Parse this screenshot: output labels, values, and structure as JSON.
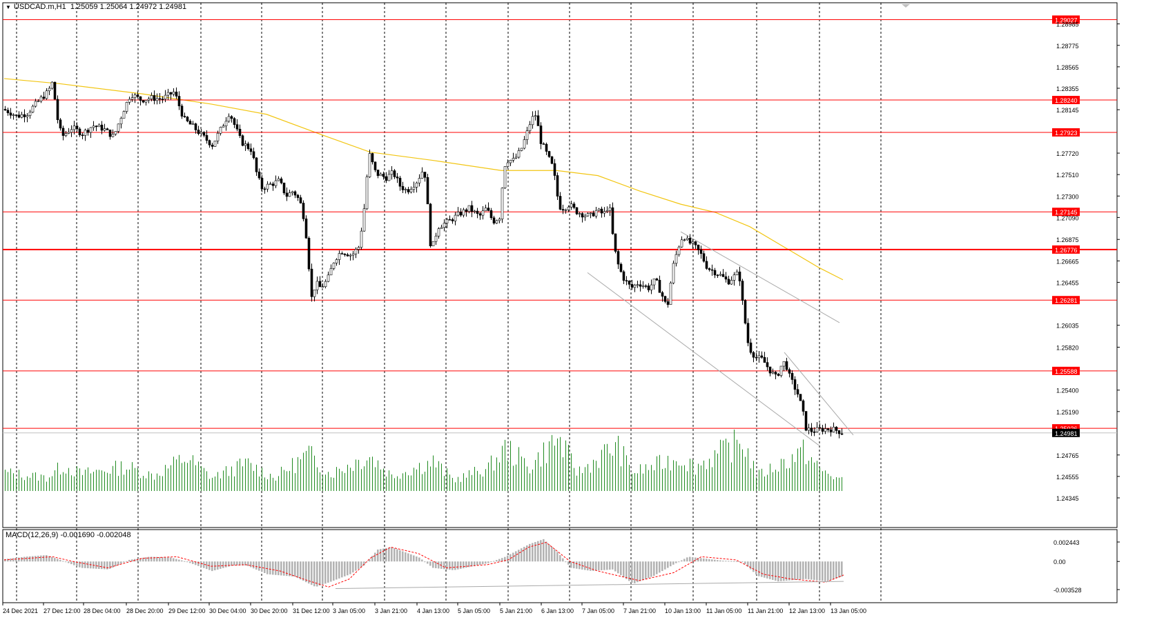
{
  "window": {
    "symbol": "USDCAD.m",
    "timeframe": "H1",
    "ohlc": "1.25059 1.25064 1.24972 1.24981"
  },
  "colors": {
    "background": "#ffffff",
    "candle": "#000000",
    "sma": "#f2c511",
    "level_line": "#ff0000",
    "level_tag_bg": "#ff0000",
    "level_tag_text": "#ffffff",
    "channel": "#a9a9a9",
    "volume": "#1f8a1f",
    "macd_hist": "#b3b3b3",
    "macd_signal": "#ff0000",
    "grid_vertical": "#000000"
  },
  "price_axis": {
    "ticks": [
      "1.28985",
      "1.28775",
      "1.28565",
      "1.28355",
      "1.28145",
      "1.27720",
      "1.27510",
      "1.27300",
      "1.27090",
      "1.26875",
      "1.26665",
      "1.26455",
      "1.26035",
      "1.25820",
      "1.25400",
      "1.25190",
      "1.24765",
      "1.24555",
      "1.24345"
    ],
    "current_price": "1.24981"
  },
  "levels": [
    {
      "label": "1.29027",
      "value": 1.29027
    },
    {
      "label": "1.28240",
      "value": 1.2824
    },
    {
      "label": "1.27923",
      "value": 1.27923
    },
    {
      "label": "1.27145",
      "value": 1.27145
    },
    {
      "label": "1.26776",
      "value": 1.26776
    },
    {
      "label": "1.26281",
      "value": 1.26281
    },
    {
      "label": "1.25588",
      "value": 1.25588
    },
    {
      "label": "1.25026",
      "value": 1.25026
    }
  ],
  "time_axis": [
    "24 Dec 2021",
    "27 Dec 12:00",
    "28 Dec 04:00",
    "28 Dec 20:00",
    "29 Dec 12:00",
    "30 Dec 04:00",
    "30 Dec 20:00",
    "31 Dec 12:00",
    "3 Jan 05:00",
    "3 Jan 21:00",
    "4 Jan 13:00",
    "5 Jan 05:00",
    "5 Jan 21:00",
    "6 Jan 13:00",
    "7 Jan 05:00",
    "7 Jan 21:00",
    "10 Jan 13:00",
    "11 Jan 05:00",
    "11 Jan 21:00",
    "12 Jan 13:00",
    "13 Jan 05:00"
  ],
  "macd": {
    "title": "MACD(12,26,9) -0.001690 -0.002048",
    "ticks": [
      "0.002443",
      "0.00",
      "-0.003528"
    ]
  },
  "chart_data": {
    "type": "candlestick",
    "price_path": [
      [
        0,
        1.2815
      ],
      [
        10,
        1.2812
      ],
      [
        20,
        1.2808
      ],
      [
        35,
        1.2811
      ],
      [
        50,
        1.2822
      ],
      [
        65,
        1.2832
      ],
      [
        72,
        1.2842
      ],
      [
        78,
        1.2808
      ],
      [
        85,
        1.2788
      ],
      [
        100,
        1.2797
      ],
      [
        115,
        1.2791
      ],
      [
        130,
        1.2799
      ],
      [
        145,
        1.2796
      ],
      [
        160,
        1.2788
      ],
      [
        175,
        1.2815
      ],
      [
        185,
        1.283
      ],
      [
        200,
        1.2824
      ],
      [
        215,
        1.2826
      ],
      [
        230,
        1.2825
      ],
      [
        248,
        1.2832
      ],
      [
        262,
        1.2805
      ],
      [
        275,
        1.2798
      ],
      [
        290,
        1.2788
      ],
      [
        303,
        1.278
      ],
      [
        315,
        1.2795
      ],
      [
        328,
        1.2812
      ],
      [
        335,
        1.28
      ],
      [
        345,
        1.2783
      ],
      [
        360,
        1.2775
      ],
      [
        368,
        1.275
      ],
      [
        375,
        1.2738
      ],
      [
        390,
        1.2742
      ],
      [
        400,
        1.2745
      ],
      [
        410,
        1.273
      ],
      [
        420,
        1.2735
      ],
      [
        430,
        1.2725
      ],
      [
        437,
        1.2705
      ],
      [
        442,
        1.2672
      ],
      [
        446,
        1.2628
      ],
      [
        453,
        1.2645
      ],
      [
        460,
        1.264
      ],
      [
        470,
        1.2648
      ],
      [
        480,
        1.2668
      ],
      [
        490,
        1.2676
      ],
      [
        505,
        1.2672
      ],
      [
        515,
        1.268
      ],
      [
        522,
        1.271
      ],
      [
        530,
        1.2772
      ],
      [
        540,
        1.2752
      ],
      [
        555,
        1.2748
      ],
      [
        565,
        1.2753
      ],
      [
        575,
        1.274
      ],
      [
        585,
        1.2735
      ],
      [
        600,
        1.2745
      ],
      [
        610,
        1.2758
      ],
      [
        615,
        1.272
      ],
      [
        620,
        1.2675
      ],
      [
        630,
        1.27
      ],
      [
        645,
        1.2705
      ],
      [
        660,
        1.2712
      ],
      [
        675,
        1.2718
      ],
      [
        690,
        1.271
      ],
      [
        700,
        1.2718
      ],
      [
        710,
        1.2705
      ],
      [
        720,
        1.271
      ],
      [
        725,
        1.2758
      ],
      [
        730,
        1.2765
      ],
      [
        740,
        1.2765
      ],
      [
        750,
        1.2775
      ],
      [
        758,
        1.279
      ],
      [
        765,
        1.2805
      ],
      [
        772,
        1.281
      ],
      [
        778,
        1.2785
      ],
      [
        785,
        1.2775
      ],
      [
        795,
        1.276
      ],
      [
        800,
        1.2745
      ],
      [
        805,
        1.272
      ],
      [
        812,
        1.2718
      ],
      [
        820,
        1.2722
      ],
      [
        830,
        1.2715
      ],
      [
        840,
        1.2712
      ],
      [
        850,
        1.271
      ],
      [
        860,
        1.2716
      ],
      [
        870,
        1.2712
      ],
      [
        878,
        1.2722
      ],
      [
        885,
        1.268
      ],
      [
        892,
        1.266
      ],
      [
        900,
        1.2648
      ],
      [
        910,
        1.264
      ],
      [
        920,
        1.2645
      ],
      [
        935,
        1.264
      ],
      [
        945,
        1.2648
      ],
      [
        955,
        1.2632
      ],
      [
        962,
        1.262
      ],
      [
        970,
        1.266
      ],
      [
        978,
        1.268
      ],
      [
        985,
        1.2692
      ],
      [
        992,
        1.2685
      ],
      [
        1000,
        1.2682
      ],
      [
        1010,
        1.2674
      ],
      [
        1020,
        1.266
      ],
      [
        1030,
        1.2656
      ],
      [
        1040,
        1.2652
      ],
      [
        1050,
        1.2646
      ],
      [
        1060,
        1.2652
      ],
      [
        1066,
        1.2655
      ],
      [
        1072,
        1.262
      ],
      [
        1080,
        1.2582
      ],
      [
        1090,
        1.2572
      ],
      [
        1100,
        1.257
      ],
      [
        1110,
        1.256
      ],
      [
        1120,
        1.2552
      ],
      [
        1128,
        1.2565
      ],
      [
        1133,
        1.2568
      ],
      [
        1138,
        1.2555
      ],
      [
        1145,
        1.2545
      ],
      [
        1152,
        1.2535
      ],
      [
        1158,
        1.252
      ],
      [
        1163,
        1.2503
      ],
      [
        1170,
        1.25
      ],
      [
        1180,
        1.2501
      ],
      [
        1190,
        1.2502
      ],
      [
        1200,
        1.2502
      ],
      [
        1210,
        1.25
      ],
      [
        1216,
        1.2498
      ]
    ],
    "sma_path": [
      [
        0,
        1.2845
      ],
      [
        80,
        1.284
      ],
      [
        200,
        1.283
      ],
      [
        300,
        1.282
      ],
      [
        380,
        1.281
      ],
      [
        460,
        1.279
      ],
      [
        530,
        1.2773
      ],
      [
        620,
        1.2765
      ],
      [
        720,
        1.2755
      ],
      [
        800,
        1.2755
      ],
      [
        860,
        1.275
      ],
      [
        920,
        1.2735
      ],
      [
        980,
        1.2722
      ],
      [
        1030,
        1.2714
      ],
      [
        1080,
        1.27
      ],
      [
        1130,
        1.268
      ],
      [
        1180,
        1.266
      ],
      [
        1215,
        1.2648
      ]
    ],
    "channel": {
      "upper": [
        [
          980,
          1.2695
        ],
        [
          1210,
          1.2606
        ]
      ],
      "middle": [
        [
          1130,
          1.2577
        ],
        [
          1230,
          1.2496
        ]
      ],
      "lower": [
        [
          845,
          1.2655
        ],
        [
          1180,
          1.2486
        ]
      ]
    },
    "volume_path": [
      [
        0,
        0.3
      ],
      [
        60,
        0.22
      ],
      [
        85,
        0.42
      ],
      [
        110,
        0.28
      ],
      [
        175,
        0.4
      ],
      [
        215,
        0.25
      ],
      [
        262,
        0.55
      ],
      [
        300,
        0.22
      ],
      [
        350,
        0.45
      ],
      [
        390,
        0.22
      ],
      [
        440,
        0.6
      ],
      [
        470,
        0.28
      ],
      [
        528,
        0.58
      ],
      [
        560,
        0.25
      ],
      [
        620,
        0.48
      ],
      [
        650,
        0.18
      ],
      [
        700,
        0.38
      ],
      [
        725,
        0.7
      ],
      [
        760,
        0.4
      ],
      [
        800,
        0.86
      ],
      [
        830,
        0.3
      ],
      [
        885,
        0.75
      ],
      [
        910,
        0.3
      ],
      [
        978,
        0.55
      ],
      [
        1000,
        0.4
      ],
      [
        1068,
        0.82
      ],
      [
        1090,
        0.25
      ],
      [
        1158,
        0.65
      ],
      [
        1180,
        0.35
      ],
      [
        1216,
        0.15
      ]
    ],
    "macd_hist_path": [
      [
        0,
        0.0003
      ],
      [
        30,
        0.0006
      ],
      [
        60,
        0.0008
      ],
      [
        80,
        0.0002
      ],
      [
        110,
        -0.0008
      ],
      [
        150,
        -0.001
      ],
      [
        180,
        0.0002
      ],
      [
        210,
        0.0006
      ],
      [
        240,
        0.0005
      ],
      [
        262,
        0.0
      ],
      [
        300,
        -0.0012
      ],
      [
        330,
        -0.0005
      ],
      [
        350,
        -0.0005
      ],
      [
        380,
        -0.0016
      ],
      [
        420,
        -0.0019
      ],
      [
        450,
        -0.0032
      ],
      [
        470,
        -0.0026
      ],
      [
        500,
        -0.0016
      ],
      [
        520,
        -0.0005
      ],
      [
        540,
        0.0015
      ],
      [
        560,
        0.0018
      ],
      [
        600,
        0.0005
      ],
      [
        620,
        -0.0008
      ],
      [
        650,
        -0.0011
      ],
      [
        700,
        -0.0002
      ],
      [
        725,
        0.0006
      ],
      [
        760,
        0.0022
      ],
      [
        780,
        0.0028
      ],
      [
        800,
        0.0012
      ],
      [
        820,
        -0.0008
      ],
      [
        850,
        -0.0012
      ],
      [
        880,
        -0.001
      ],
      [
        910,
        -0.0028
      ],
      [
        940,
        -0.0018
      ],
      [
        970,
        -0.0003
      ],
      [
        990,
        0.0006
      ],
      [
        1010,
        0.0004
      ],
      [
        1040,
        0.0001
      ],
      [
        1068,
        0.0
      ],
      [
        1090,
        -0.0018
      ],
      [
        1120,
        -0.0025
      ],
      [
        1160,
        -0.0022
      ],
      [
        1190,
        -0.0025
      ],
      [
        1216,
        -0.0018
      ]
    ],
    "macd_signal_path": [
      [
        0,
        0.0002
      ],
      [
        70,
        0.0006
      ],
      [
        100,
        0.0
      ],
      [
        150,
        -0.0008
      ],
      [
        200,
        0.0004
      ],
      [
        250,
        0.0006
      ],
      [
        300,
        -0.0006
      ],
      [
        350,
        -0.0004
      ],
      [
        400,
        -0.0012
      ],
      [
        440,
        -0.0024
      ],
      [
        470,
        -0.0032
      ],
      [
        500,
        -0.0022
      ],
      [
        530,
        0.0004
      ],
      [
        560,
        0.0018
      ],
      [
        600,
        0.001
      ],
      [
        640,
        -0.0008
      ],
      [
        700,
        -0.0004
      ],
      [
        730,
        0.0002
      ],
      [
        760,
        0.0018
      ],
      [
        785,
        0.0024
      ],
      [
        820,
        0.0
      ],
      [
        860,
        -0.0012
      ],
      [
        920,
        -0.0024
      ],
      [
        970,
        -0.0014
      ],
      [
        1010,
        0.0006
      ],
      [
        1060,
        0.0002
      ],
      [
        1100,
        -0.0016
      ],
      [
        1140,
        -0.0022
      ],
      [
        1190,
        -0.0026
      ],
      [
        1216,
        -0.0017
      ]
    ],
    "macd_trend_line": [
      [
        480,
        -0.0034
      ],
      [
        1216,
        -0.0025
      ]
    ]
  }
}
